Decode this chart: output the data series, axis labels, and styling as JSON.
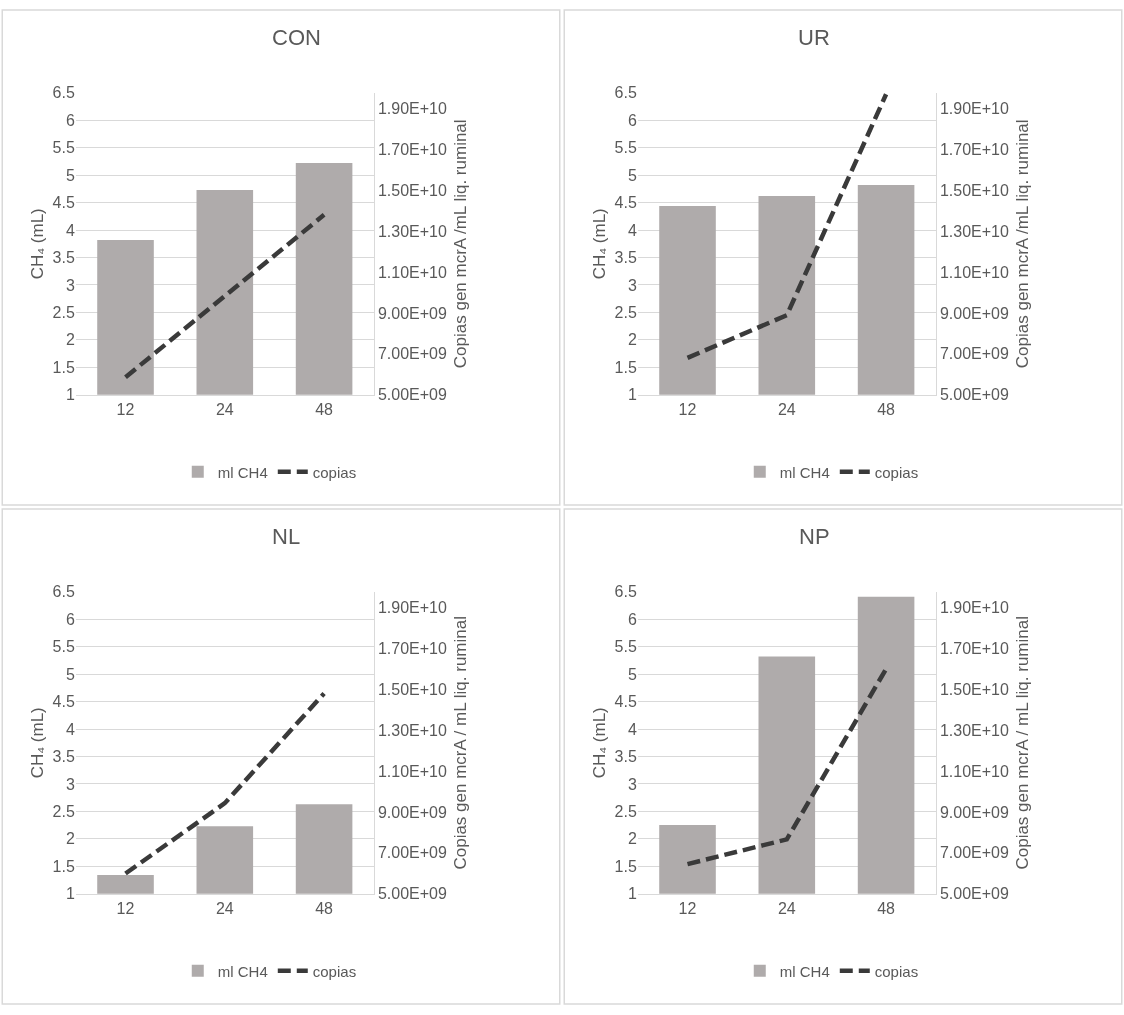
{
  "chart_data": [
    {
      "type": "bar",
      "title": "CON",
      "categories": [
        "12",
        "24",
        "48"
      ],
      "ylabel": "CH₄ (mL)",
      "y2label": "Copias gen mcrA /mL liq. ruminal",
      "ylim": [
        1,
        6.5
      ],
      "yticks": [
        1,
        1.5,
        2,
        2.5,
        3,
        3.5,
        4,
        4.5,
        5,
        5.5,
        6,
        6.5
      ],
      "y2lim": [
        5000000000,
        19770000000
      ],
      "y2ticks": [
        {
          "value": 5000000000,
          "label": "5.00E+09"
        },
        {
          "value": 7000000000,
          "label": "7.00E+09"
        },
        {
          "value": 9000000000,
          "label": "9.00E+09"
        },
        {
          "value": 11000000000,
          "label": "1.10E+10"
        },
        {
          "value": 13000000000,
          "label": "1.30E+10"
        },
        {
          "value": 15000000000,
          "label": "1.50E+10"
        },
        {
          "value": 17000000000,
          "label": "1.70E+10"
        },
        {
          "value": 19000000000,
          "label": "1.90E+10"
        }
      ],
      "grid": "y",
      "legend": "bottom",
      "series": [
        {
          "name": "ml CH4",
          "color": "#afabab",
          "values": [
            3.82,
            4.73,
            5.22
          ]
        },
        {
          "name": "copias",
          "type": "line",
          "axis": "y2",
          "color": "#3a3a3a",
          "line_style": "dashed",
          "values": [
            5860000000,
            9830000000,
            13800000000
          ]
        }
      ]
    },
    {
      "type": "bar",
      "title": "UR",
      "categories": [
        "12",
        "24",
        "48"
      ],
      "ylabel": "CH₄ (mL)",
      "y2label": "Copias gen mcrA /mL liq. ruminal",
      "ylim": [
        1,
        6.5
      ],
      "yticks": [
        1,
        1.5,
        2,
        2.5,
        3,
        3.5,
        4,
        4.5,
        5,
        5.5,
        6,
        6.5
      ],
      "y2lim": [
        5000000000,
        19770000000
      ],
      "y2ticks": [
        {
          "value": 5000000000,
          "label": "5.00E+09"
        },
        {
          "value": 7000000000,
          "label": "7.00E+09"
        },
        {
          "value": 9000000000,
          "label": "9.00E+09"
        },
        {
          "value": 11000000000,
          "label": "1.10E+10"
        },
        {
          "value": 13000000000,
          "label": "1.30E+10"
        },
        {
          "value": 15000000000,
          "label": "1.50E+10"
        },
        {
          "value": 17000000000,
          "label": "1.70E+10"
        },
        {
          "value": 19000000000,
          "label": "1.90E+10"
        }
      ],
      "grid": "y",
      "legend": "bottom",
      "series": [
        {
          "name": "ml CH4",
          "color": "#afabab",
          "values": [
            4.44,
            4.62,
            4.82
          ]
        },
        {
          "name": "copias",
          "type": "line",
          "axis": "y2",
          "color": "#3a3a3a",
          "line_style": "dashed",
          "values": [
            6800000000,
            8890000000,
            19700000000
          ]
        }
      ]
    },
    {
      "type": "bar",
      "title": "NL",
      "categories": [
        "12",
        "24",
        "48"
      ],
      "ylabel": "CH₄ (mL)",
      "y2label": "Copias gen mcrA / mL liq. ruminal",
      "ylim": [
        1,
        6.5
      ],
      "yticks": [
        1,
        1.5,
        2,
        2.5,
        3,
        3.5,
        4,
        4.5,
        5,
        5.5,
        6,
        6.5
      ],
      "y2lim": [
        5000000000,
        19770000000
      ],
      "y2ticks": [
        {
          "value": 5000000000,
          "label": "5.00E+09"
        },
        {
          "value": 7000000000,
          "label": "7.00E+09"
        },
        {
          "value": 9000000000,
          "label": "9.00E+09"
        },
        {
          "value": 11000000000,
          "label": "1.10E+10"
        },
        {
          "value": 13000000000,
          "label": "1.30E+10"
        },
        {
          "value": 15000000000,
          "label": "1.50E+10"
        },
        {
          "value": 17000000000,
          "label": "1.70E+10"
        },
        {
          "value": 19000000000,
          "label": "1.90E+10"
        }
      ],
      "grid": "y",
      "legend": "bottom",
      "series": [
        {
          "name": "ml CH4",
          "color": "#afabab",
          "values": [
            1.34,
            2.23,
            2.63
          ]
        },
        {
          "name": "copias",
          "type": "line",
          "axis": "y2",
          "color": "#3a3a3a",
          "line_style": "dashed",
          "values": [
            5990000000,
            9430000000,
            14800000000
          ]
        }
      ]
    },
    {
      "type": "bar",
      "title": "NP",
      "categories": [
        "12",
        "24",
        "48"
      ],
      "ylabel": "CH₄ (mL)",
      "y2label": "Copias gen mcrA / mL liq. ruminal",
      "ylim": [
        1,
        6.5
      ],
      "yticks": [
        1,
        1.5,
        2,
        2.5,
        3,
        3.5,
        4,
        4.5,
        5,
        5.5,
        6,
        6.5
      ],
      "y2lim": [
        5000000000,
        19770000000
      ],
      "y2ticks": [
        {
          "value": 5000000000,
          "label": "5.00E+09"
        },
        {
          "value": 7000000000,
          "label": "7.00E+09"
        },
        {
          "value": 9000000000,
          "label": "9.00E+09"
        },
        {
          "value": 11000000000,
          "label": "1.10E+10"
        },
        {
          "value": 13000000000,
          "label": "1.30E+10"
        },
        {
          "value": 15000000000,
          "label": "1.50E+10"
        },
        {
          "value": 17000000000,
          "label": "1.70E+10"
        },
        {
          "value": 19000000000,
          "label": "1.90E+10"
        }
      ],
      "grid": "y",
      "legend": "bottom",
      "series": [
        {
          "name": "ml CH4",
          "color": "#afabab",
          "values": [
            2.25,
            5.32,
            6.41
          ]
        },
        {
          "name": "copias",
          "type": "line",
          "axis": "y2",
          "color": "#3a3a3a",
          "line_style": "dashed",
          "values": [
            6450000000,
            7660000000,
            16000000000
          ]
        }
      ]
    }
  ]
}
